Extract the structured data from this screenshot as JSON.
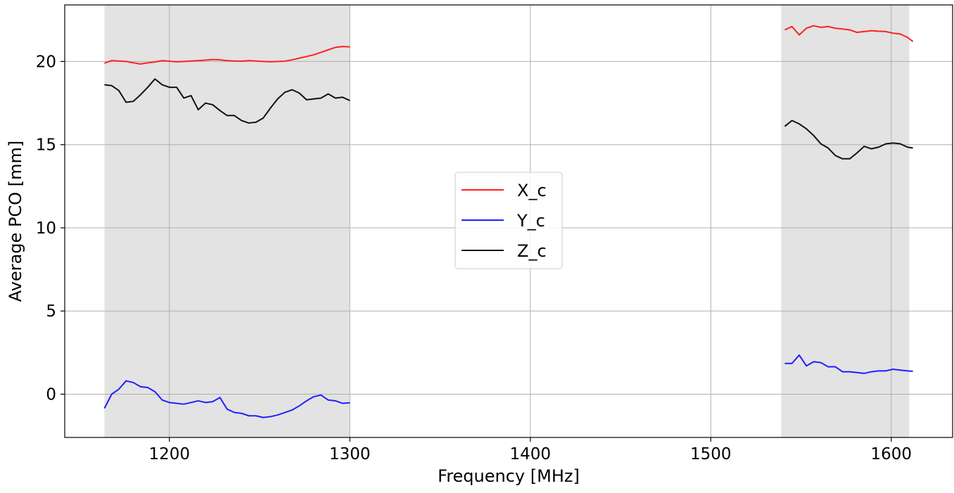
{
  "chart_data": {
    "type": "line",
    "title": "",
    "xlabel": "Frequency [MHz]",
    "ylabel": "Average PCO [mm]",
    "xlim": [
      1142,
      1634
    ],
    "ylim": [
      -2.6,
      23.4
    ],
    "x_ticks": [
      1200,
      1300,
      1400,
      1500,
      1600
    ],
    "y_ticks": [
      0,
      5,
      10,
      15,
      20
    ],
    "x_tick_labels": [
      "1200",
      "1300",
      "1400",
      "1500",
      "1600"
    ],
    "y_tick_labels": [
      "0",
      "5",
      "10",
      "15",
      "20"
    ],
    "grid": true,
    "legend_position": "center",
    "shaded_bands": [
      {
        "x_start": 1164,
        "x_end": 1300,
        "color": "#e3e3e3"
      },
      {
        "x_start": 1539,
        "x_end": 1610,
        "color": "#e3e3e3"
      }
    ],
    "series": [
      {
        "name": "X_c",
        "color": "#ff2020",
        "segments": [
          [
            [
              1164,
              19.9
            ],
            [
              1168,
              20.05
            ],
            [
              1172,
              20.03
            ],
            [
              1176,
              20.0
            ],
            [
              1180,
              19.92
            ],
            [
              1184,
              19.85
            ],
            [
              1188,
              19.92
            ],
            [
              1192,
              19.97
            ],
            [
              1196,
              20.05
            ],
            [
              1200,
              20.02
            ],
            [
              1204,
              19.98
            ],
            [
              1208,
              20.0
            ],
            [
              1212,
              20.03
            ],
            [
              1216,
              20.05
            ],
            [
              1220,
              20.08
            ],
            [
              1224,
              20.12
            ],
            [
              1228,
              20.1
            ],
            [
              1232,
              20.05
            ],
            [
              1236,
              20.03
            ],
            [
              1240,
              20.02
            ],
            [
              1244,
              20.05
            ],
            [
              1248,
              20.03
            ],
            [
              1252,
              20.0
            ],
            [
              1256,
              19.98
            ],
            [
              1260,
              20.0
            ],
            [
              1264,
              20.02
            ],
            [
              1268,
              20.1
            ],
            [
              1272,
              20.2
            ],
            [
              1276,
              20.3
            ],
            [
              1280,
              20.4
            ],
            [
              1284,
              20.55
            ],
            [
              1288,
              20.7
            ],
            [
              1292,
              20.85
            ],
            [
              1296,
              20.9
            ],
            [
              1300,
              20.88
            ]
          ],
          [
            [
              1541,
              21.9
            ],
            [
              1545,
              22.1
            ],
            [
              1549,
              21.6
            ],
            [
              1553,
              22.0
            ],
            [
              1557,
              22.15
            ],
            [
              1561,
              22.05
            ],
            [
              1565,
              22.1
            ],
            [
              1569,
              22.0
            ],
            [
              1573,
              21.95
            ],
            [
              1577,
              21.9
            ],
            [
              1581,
              21.75
            ],
            [
              1585,
              21.8
            ],
            [
              1589,
              21.85
            ],
            [
              1593,
              21.82
            ],
            [
              1597,
              21.8
            ],
            [
              1601,
              21.7
            ],
            [
              1605,
              21.65
            ],
            [
              1609,
              21.45
            ],
            [
              1612,
              21.2
            ]
          ]
        ]
      },
      {
        "name": "Y_c",
        "color": "#1f1fff",
        "segments": [
          [
            [
              1164,
              -0.85
            ],
            [
              1168,
              0.0
            ],
            [
              1172,
              0.3
            ],
            [
              1176,
              0.8
            ],
            [
              1180,
              0.7
            ],
            [
              1184,
              0.45
            ],
            [
              1188,
              0.4
            ],
            [
              1192,
              0.15
            ],
            [
              1196,
              -0.35
            ],
            [
              1200,
              -0.5
            ],
            [
              1204,
              -0.55
            ],
            [
              1208,
              -0.6
            ],
            [
              1212,
              -0.5
            ],
            [
              1216,
              -0.4
            ],
            [
              1220,
              -0.5
            ],
            [
              1224,
              -0.45
            ],
            [
              1228,
              -0.2
            ],
            [
              1232,
              -0.9
            ],
            [
              1236,
              -1.1
            ],
            [
              1240,
              -1.15
            ],
            [
              1244,
              -1.3
            ],
            [
              1248,
              -1.3
            ],
            [
              1252,
              -1.4
            ],
            [
              1256,
              -1.35
            ],
            [
              1260,
              -1.25
            ],
            [
              1264,
              -1.1
            ],
            [
              1268,
              -0.95
            ],
            [
              1272,
              -0.7
            ],
            [
              1276,
              -0.4
            ],
            [
              1280,
              -0.15
            ],
            [
              1284,
              -0.05
            ],
            [
              1288,
              -0.35
            ],
            [
              1292,
              -0.4
            ],
            [
              1296,
              -0.55
            ],
            [
              1300,
              -0.52
            ]
          ],
          [
            [
              1541,
              1.85
            ],
            [
              1545,
              1.85
            ],
            [
              1549,
              2.35
            ],
            [
              1553,
              1.7
            ],
            [
              1557,
              1.95
            ],
            [
              1561,
              1.9
            ],
            [
              1565,
              1.65
            ],
            [
              1569,
              1.65
            ],
            [
              1573,
              1.35
            ],
            [
              1577,
              1.35
            ],
            [
              1581,
              1.3
            ],
            [
              1585,
              1.25
            ],
            [
              1589,
              1.35
            ],
            [
              1593,
              1.4
            ],
            [
              1597,
              1.4
            ],
            [
              1601,
              1.5
            ],
            [
              1605,
              1.45
            ],
            [
              1609,
              1.4
            ],
            [
              1612,
              1.38
            ]
          ]
        ]
      },
      {
        "name": "Z_c",
        "color": "#111111",
        "segments": [
          [
            [
              1164,
              18.6
            ],
            [
              1168,
              18.55
            ],
            [
              1172,
              18.25
            ],
            [
              1176,
              17.55
            ],
            [
              1180,
              17.6
            ],
            [
              1184,
              18.0
            ],
            [
              1188,
              18.45
            ],
            [
              1192,
              18.95
            ],
            [
              1196,
              18.6
            ],
            [
              1200,
              18.45
            ],
            [
              1204,
              18.45
            ],
            [
              1208,
              17.8
            ],
            [
              1212,
              17.95
            ],
            [
              1216,
              17.1
            ],
            [
              1220,
              17.5
            ],
            [
              1224,
              17.4
            ],
            [
              1228,
              17.05
            ],
            [
              1232,
              16.75
            ],
            [
              1236,
              16.75
            ],
            [
              1240,
              16.45
            ],
            [
              1244,
              16.3
            ],
            [
              1248,
              16.35
            ],
            [
              1252,
              16.6
            ],
            [
              1256,
              17.2
            ],
            [
              1260,
              17.75
            ],
            [
              1264,
              18.15
            ],
            [
              1268,
              18.3
            ],
            [
              1272,
              18.1
            ],
            [
              1276,
              17.7
            ],
            [
              1280,
              17.75
            ],
            [
              1284,
              17.8
            ],
            [
              1288,
              18.05
            ],
            [
              1292,
              17.8
            ],
            [
              1296,
              17.85
            ],
            [
              1300,
              17.65
            ]
          ],
          [
            [
              1541,
              16.1
            ],
            [
              1545,
              16.45
            ],
            [
              1549,
              16.25
            ],
            [
              1553,
              15.95
            ],
            [
              1557,
              15.55
            ],
            [
              1561,
              15.05
            ],
            [
              1565,
              14.8
            ],
            [
              1569,
              14.35
            ],
            [
              1573,
              14.15
            ],
            [
              1577,
              14.15
            ],
            [
              1581,
              14.5
            ],
            [
              1585,
              14.9
            ],
            [
              1589,
              14.75
            ],
            [
              1593,
              14.85
            ],
            [
              1597,
              15.05
            ],
            [
              1601,
              15.1
            ],
            [
              1605,
              15.05
            ],
            [
              1609,
              14.85
            ],
            [
              1612,
              14.8
            ]
          ]
        ]
      }
    ]
  }
}
